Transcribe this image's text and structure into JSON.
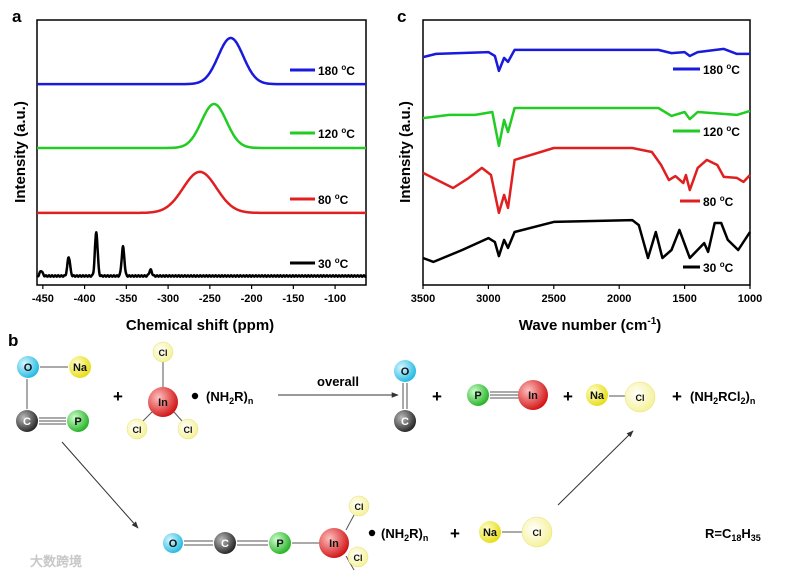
{
  "panel_labels": {
    "a": "a",
    "b": "b",
    "c": "c"
  },
  "chart_data": [
    {
      "type": "line",
      "title": "",
      "xlabel": "Chemical shift (ppm)",
      "ylabel": "Intensity (a.u.)",
      "xlim": [
        -457,
        -63
      ],
      "ylim": [
        0,
        100
      ],
      "xticks": [
        -450,
        -400,
        -350,
        -300,
        -250,
        -200,
        -150,
        -100
      ],
      "xtick_labels": [
        "-450",
        "-400",
        "-350",
        "-300",
        "-250",
        "-200",
        "-150",
        "-100"
      ],
      "grid": false,
      "legend_placement": "right, next to each curve",
      "series": [
        {
          "name": "180 °C",
          "label_main": "180 ",
          "label_sup": "o",
          "label_unit": "C",
          "color": "#1a1adc",
          "baseline": 75.8,
          "peaks": [
            {
              "center": -225,
              "height": 17.4,
              "sigma": 15
            }
          ]
        },
        {
          "name": "120 °C",
          "label_main": "120 ",
          "label_sup": "o",
          "label_unit": "C",
          "color": "#22cc22",
          "baseline": 51.7,
          "peaks": [
            {
              "center": -245,
              "height": 16.6,
              "sigma": 15
            }
          ]
        },
        {
          "name": "80 °C",
          "label_main": "80 ",
          "label_sup": "o",
          "label_unit": "C",
          "color": "#e02020",
          "baseline": 27.2,
          "peaks": [
            {
              "center": -262,
              "height": 15.5,
              "sigma": 20
            }
          ]
        },
        {
          "name": "30 °C",
          "label_main": "30 ",
          "label_sup": "o",
          "label_unit": "C",
          "color": "#000000",
          "baseline": 3.4,
          "peaks": [
            {
              "center": -452,
              "height": 2.0,
              "sigma": 1.6
            },
            {
              "center": -419,
              "height": 7.2,
              "sigma": 1.6
            },
            {
              "center": -386,
              "height": 16.6,
              "sigma": 1.6
            },
            {
              "center": -354,
              "height": 11.0,
              "sigma": 1.6
            },
            {
              "center": -321,
              "height": 2.3,
              "sigma": 1.6
            }
          ]
        }
      ]
    },
    {
      "type": "line",
      "title": "",
      "xlabel": "Wave number (cm",
      "xlabel_sup": "-1",
      "xlabel_end": ")",
      "ylabel": "Intensity (a.u.)",
      "xlim": [
        3500,
        1000
      ],
      "ylim": [
        0,
        100
      ],
      "xticks": [
        3500,
        3000,
        2500,
        2000,
        1500,
        1000
      ],
      "xtick_labels": [
        "3500",
        "3000",
        "2500",
        "2000",
        "1500",
        "1000"
      ],
      "grid": false,
      "legend_placement": "right, below each curve",
      "series": [
        {
          "name": "180 °C",
          "label_main": "180 ",
          "label_sup": "o",
          "label_unit": "C",
          "color": "#1a1adc",
          "x": [
            3500,
            3400,
            3000,
            2950,
            2920,
            2880,
            2850,
            2800,
            1700,
            1600,
            1500,
            1460,
            1400,
            1200,
            1100,
            1000
          ],
          "y": [
            86.0,
            87.2,
            87.9,
            86.4,
            80.8,
            85.7,
            84.2,
            88.7,
            88.7,
            87.5,
            87.9,
            86.4,
            87.9,
            89.1,
            87.2,
            87.2
          ]
        },
        {
          "name": "120 °C",
          "label_main": "120 ",
          "label_sup": "o",
          "label_unit": "C",
          "color": "#22cc22",
          "x": [
            3500,
            3300,
            3100,
            2970,
            2920,
            2880,
            2850,
            2800,
            1700,
            1600,
            1500,
            1460,
            1400,
            1100,
            1000
          ],
          "y": [
            63.0,
            64.2,
            64.2,
            65.3,
            52.5,
            62.3,
            57.7,
            66.8,
            66.8,
            63.8,
            65.3,
            62.6,
            65.3,
            64.2,
            65.7
          ]
        },
        {
          "name": "80 °C",
          "label_main": "80 ",
          "label_sup": "o",
          "label_unit": "C",
          "color": "#e02020",
          "x": [
            3500,
            3270,
            3150,
            3050,
            2980,
            2920,
            2880,
            2850,
            2800,
            2500,
            1900,
            1750,
            1680,
            1620,
            1570,
            1510,
            1490,
            1460,
            1400,
            1330,
            1250,
            1200,
            1100,
            1050,
            1000
          ],
          "y": [
            42.3,
            36.6,
            40.4,
            44.2,
            41.5,
            27.2,
            34.0,
            29.1,
            47.2,
            51.7,
            51.7,
            50.2,
            45.3,
            39.6,
            41.1,
            38.5,
            41.5,
            35.8,
            44.2,
            47.2,
            45.3,
            40.8,
            40.4,
            38.9,
            41.5
          ]
        },
        {
          "name": "30 °C",
          "label_main": "30 ",
          "label_sup": "o",
          "label_unit": "C",
          "color": "#000000",
          "x": [
            3500,
            3420,
            3200,
            3000,
            2950,
            2920,
            2880,
            2850,
            2800,
            2500,
            1900,
            1850,
            1780,
            1720,
            1670,
            1600,
            1540,
            1460,
            1350,
            1320,
            1270,
            1220,
            1170,
            1090,
            1000
          ],
          "y": [
            10.2,
            8.7,
            13.2,
            17.7,
            16.2,
            10.9,
            17.0,
            14.0,
            20.0,
            23.8,
            24.5,
            22.6,
            10.2,
            20.0,
            10.2,
            13.2,
            20.8,
            10.2,
            15.8,
            12.5,
            23.4,
            23.4,
            17.0,
            13.2,
            20.0
          ]
        }
      ]
    }
  ],
  "scheme": {
    "overall_label": "overall",
    "plus": "+",
    "nh2r": "(NH",
    "nh2r_sub2": "2",
    "nh2r_r": "R)",
    "nh2r_subn": "n",
    "byproduct_pre": "(NH",
    "byproduct_sub2": "2",
    "byproduct_mid": "RCl",
    "byproduct_sub2b": "2",
    "byproduct_end": ")",
    "byproduct_subn": "n",
    "r_def_pre": "R=C",
    "r_def_sub1": "18",
    "r_def_mid": "H",
    "r_def_sub2": "35",
    "atoms": {
      "O": "O",
      "Na": "Na",
      "C": "C",
      "P": "P",
      "In": "In",
      "Cl": "Cl"
    },
    "colors": {
      "O": "#39d0ef",
      "Na": "#f2ec2a",
      "C": "#444444",
      "P": "#39d23a",
      "In": "#e62020",
      "Cl": "#f8f6a8"
    }
  },
  "watermark": "大数跨境"
}
